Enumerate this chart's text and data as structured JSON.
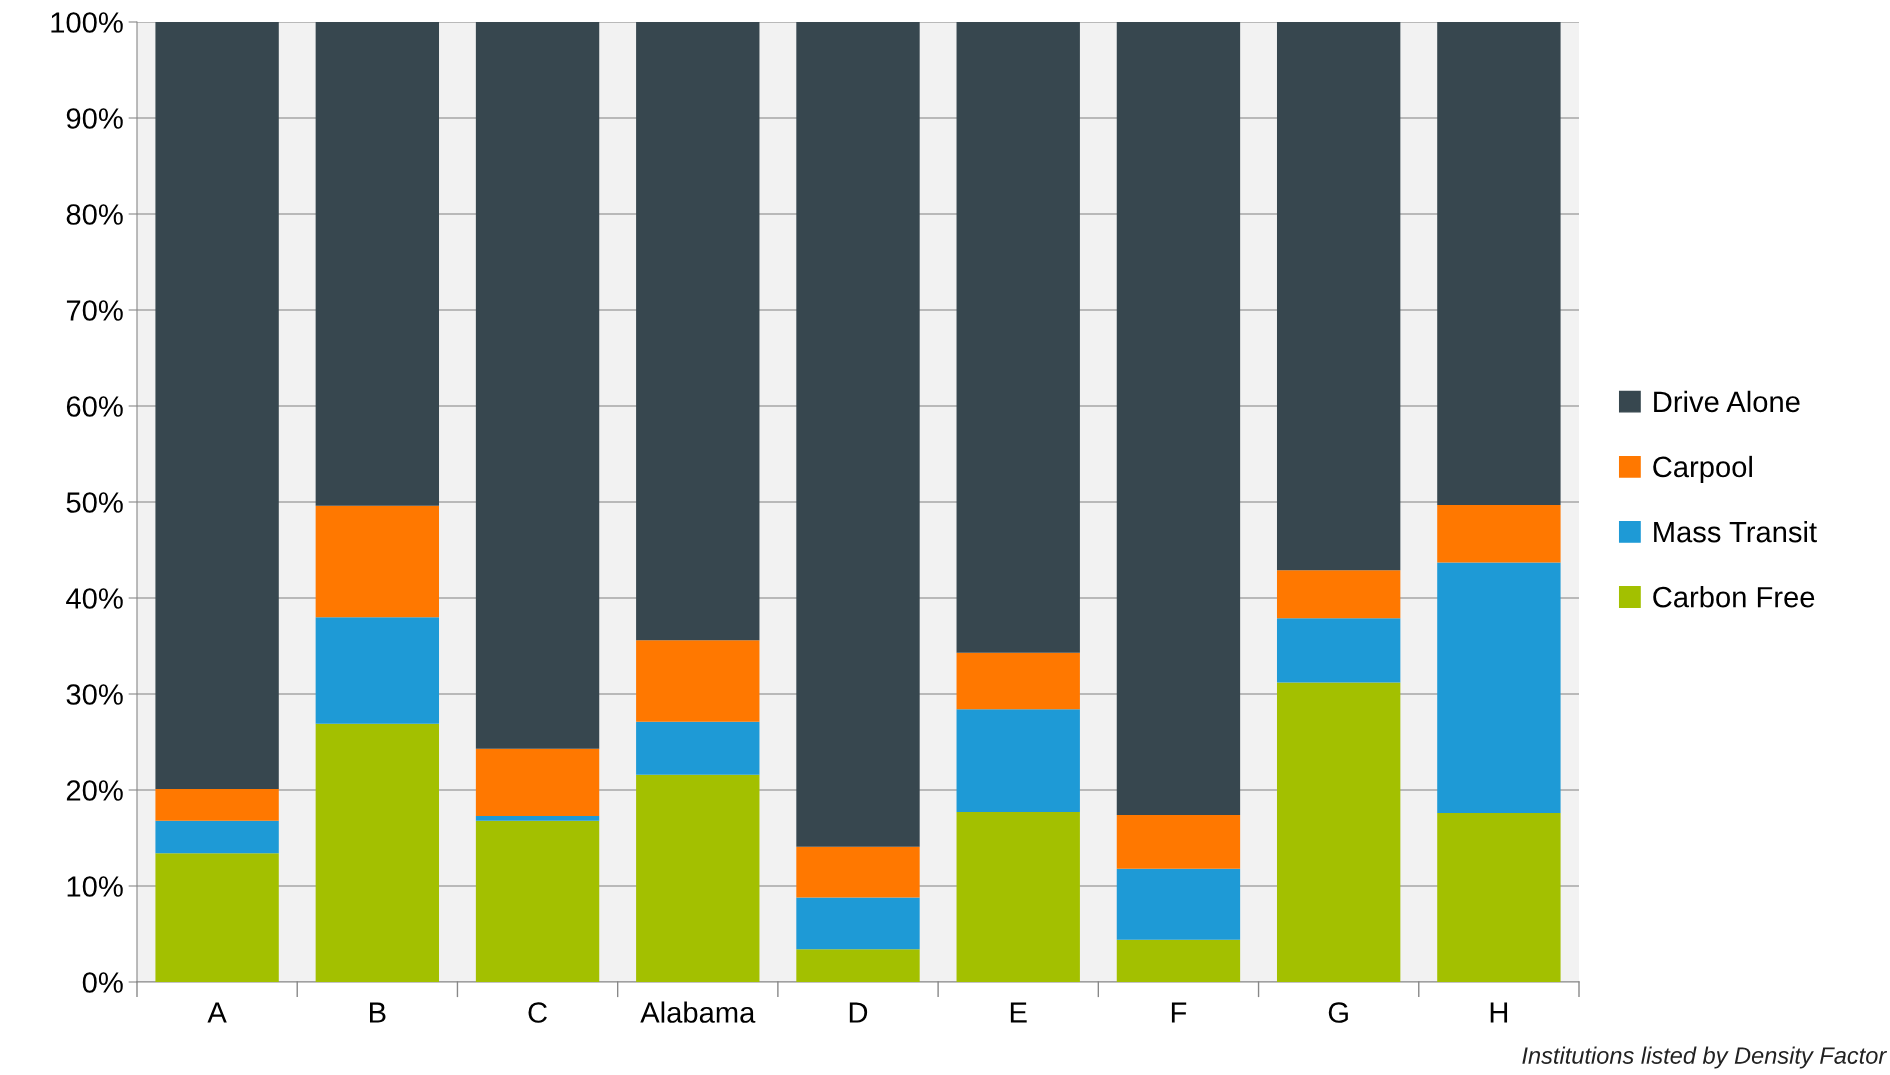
{
  "chart_data": {
    "type": "bar",
    "stacked": true,
    "categories": [
      "A",
      "B",
      "C",
      "Alabama",
      "D",
      "E",
      "F",
      "G",
      "H"
    ],
    "series": [
      {
        "name": "Carbon Free",
        "color": "#a3c000",
        "values": [
          13.4,
          26.9,
          16.8,
          21.6,
          3.4,
          17.7,
          4.4,
          31.2,
          17.6
        ]
      },
      {
        "name": "Mass Transit",
        "color": "#1e9ad6",
        "values": [
          3.4,
          11.1,
          0.5,
          5.5,
          5.4,
          10.7,
          7.4,
          6.7,
          26.1
        ]
      },
      {
        "name": "Carpool",
        "color": "#ff7800",
        "values": [
          3.3,
          11.6,
          7.0,
          8.5,
          5.3,
          5.9,
          5.6,
          5.0,
          6.0
        ]
      },
      {
        "name": "Drive Alone",
        "color": "#37474f",
        "values": [
          79.9,
          50.4,
          75.7,
          64.4,
          85.9,
          65.7,
          82.6,
          57.1,
          50.3
        ]
      }
    ],
    "ylim": [
      0,
      100
    ],
    "yticks": [
      {
        "value": 0,
        "label": "0%"
      },
      {
        "value": 10,
        "label": "10%"
      },
      {
        "value": 20,
        "label": "20%"
      },
      {
        "value": 30,
        "label": "30%"
      },
      {
        "value": 40,
        "label": "40%"
      },
      {
        "value": 50,
        "label": "50%"
      },
      {
        "value": 60,
        "label": "60%"
      },
      {
        "value": 70,
        "label": "70%"
      },
      {
        "value": 80,
        "label": "80%"
      },
      {
        "value": 90,
        "label": "90%"
      },
      {
        "value": 100,
        "label": "100%"
      }
    ],
    "grid": "y",
    "legend": "right",
    "annotations": [
      "Institutions listed by Density Factor"
    ]
  }
}
